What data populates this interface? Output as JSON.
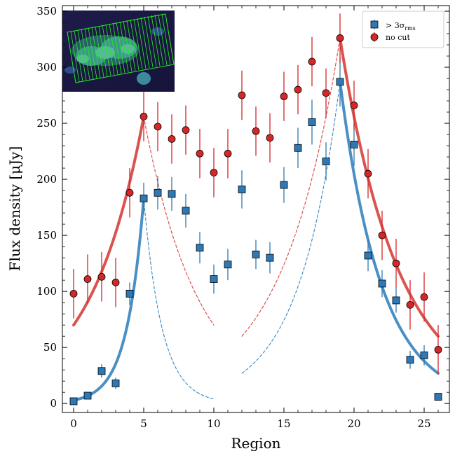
{
  "chart_data": {
    "type": "scatter",
    "xlabel": "Region",
    "ylabel": "Flux density [μJy]",
    "xlim": [
      -0.8,
      26.8
    ],
    "ylim": [
      -8,
      355
    ],
    "x_ticks": [
      0,
      5,
      10,
      15,
      20,
      25
    ],
    "y_ticks": [
      0,
      50,
      100,
      150,
      200,
      250,
      300,
      350
    ],
    "legend_position": "top-right",
    "grid": false,
    "series": [
      {
        "name": "> 3σrms",
        "label_main": "> 3σ",
        "label_sub": "rms",
        "marker": "square",
        "color": "#2f78b4",
        "x": [
          0,
          1,
          2,
          3,
          4,
          5,
          6,
          7,
          8,
          9,
          10,
          11,
          12,
          13,
          14,
          15,
          16,
          17,
          18,
          19,
          20,
          21,
          22,
          23,
          24,
          25,
          26
        ],
        "y": [
          2,
          7,
          29,
          18,
          98,
          183,
          188,
          187,
          172,
          139,
          111,
          124,
          191,
          133,
          130,
          195,
          228,
          251,
          216,
          287,
          231,
          132,
          107,
          92,
          39,
          43,
          6
        ],
        "err": [
          2,
          3,
          6,
          5,
          10,
          14,
          15,
          15,
          15,
          14,
          13,
          14,
          17,
          13,
          14,
          16,
          18,
          20,
          17,
          22,
          19,
          14,
          12,
          11,
          8,
          9,
          2
        ]
      },
      {
        "name": "no cut",
        "marker": "circle",
        "color": "#d62728",
        "x": [
          0,
          1,
          2,
          3,
          4,
          5,
          6,
          7,
          8,
          9,
          10,
          11,
          12,
          13,
          14,
          15,
          16,
          17,
          18,
          19,
          20,
          21,
          22,
          23,
          24,
          25,
          26
        ],
        "y": [
          98,
          111,
          113,
          108,
          188,
          256,
          247,
          236,
          244,
          223,
          206,
          223,
          275,
          243,
          237,
          274,
          280,
          305,
          277,
          326,
          266,
          205,
          150,
          125,
          88,
          95,
          48
        ],
        "err": [
          22,
          22,
          22,
          22,
          22,
          22,
          22,
          22,
          22,
          22,
          22,
          22,
          22,
          22,
          22,
          22,
          22,
          22,
          22,
          22,
          22,
          22,
          22,
          22,
          22,
          22,
          22
        ]
      }
    ],
    "model_curves": [
      {
        "color": "#4a90c4",
        "style": "solid",
        "peak_x": 5,
        "peak_y": 183,
        "x_range": [
          0,
          5
        ],
        "end_y": 3
      },
      {
        "color": "#4a90c4",
        "style": "dashed",
        "peak_x": 5,
        "peak_y": 183,
        "x_range": [
          5,
          10
        ],
        "end_y": 4
      },
      {
        "color": "#4a90c4",
        "style": "dashed",
        "peak_x": 19,
        "peak_y": 287,
        "x_range": [
          12,
          19
        ],
        "end_y": 27
      },
      {
        "color": "#4a90c4",
        "style": "solid",
        "peak_x": 19,
        "peak_y": 287,
        "x_range": [
          19,
          26
        ],
        "end_y": 27
      },
      {
        "color": "#d9534f",
        "style": "solid",
        "peak_x": 5,
        "peak_y": 256,
        "x_range": [
          0,
          5
        ],
        "end_y": 70
      },
      {
        "color": "#d9534f",
        "style": "dashed",
        "peak_x": 5,
        "peak_y": 256,
        "x_range": [
          5,
          10
        ],
        "end_y": 70
      },
      {
        "color": "#d9534f",
        "style": "dashed",
        "peak_x": 19,
        "peak_y": 326,
        "x_range": [
          12,
          19
        ],
        "end_y": 60
      },
      {
        "color": "#d9534f",
        "style": "solid",
        "peak_x": 19,
        "peak_y": 326,
        "x_range": [
          19,
          26
        ],
        "end_y": 60
      }
    ]
  }
}
